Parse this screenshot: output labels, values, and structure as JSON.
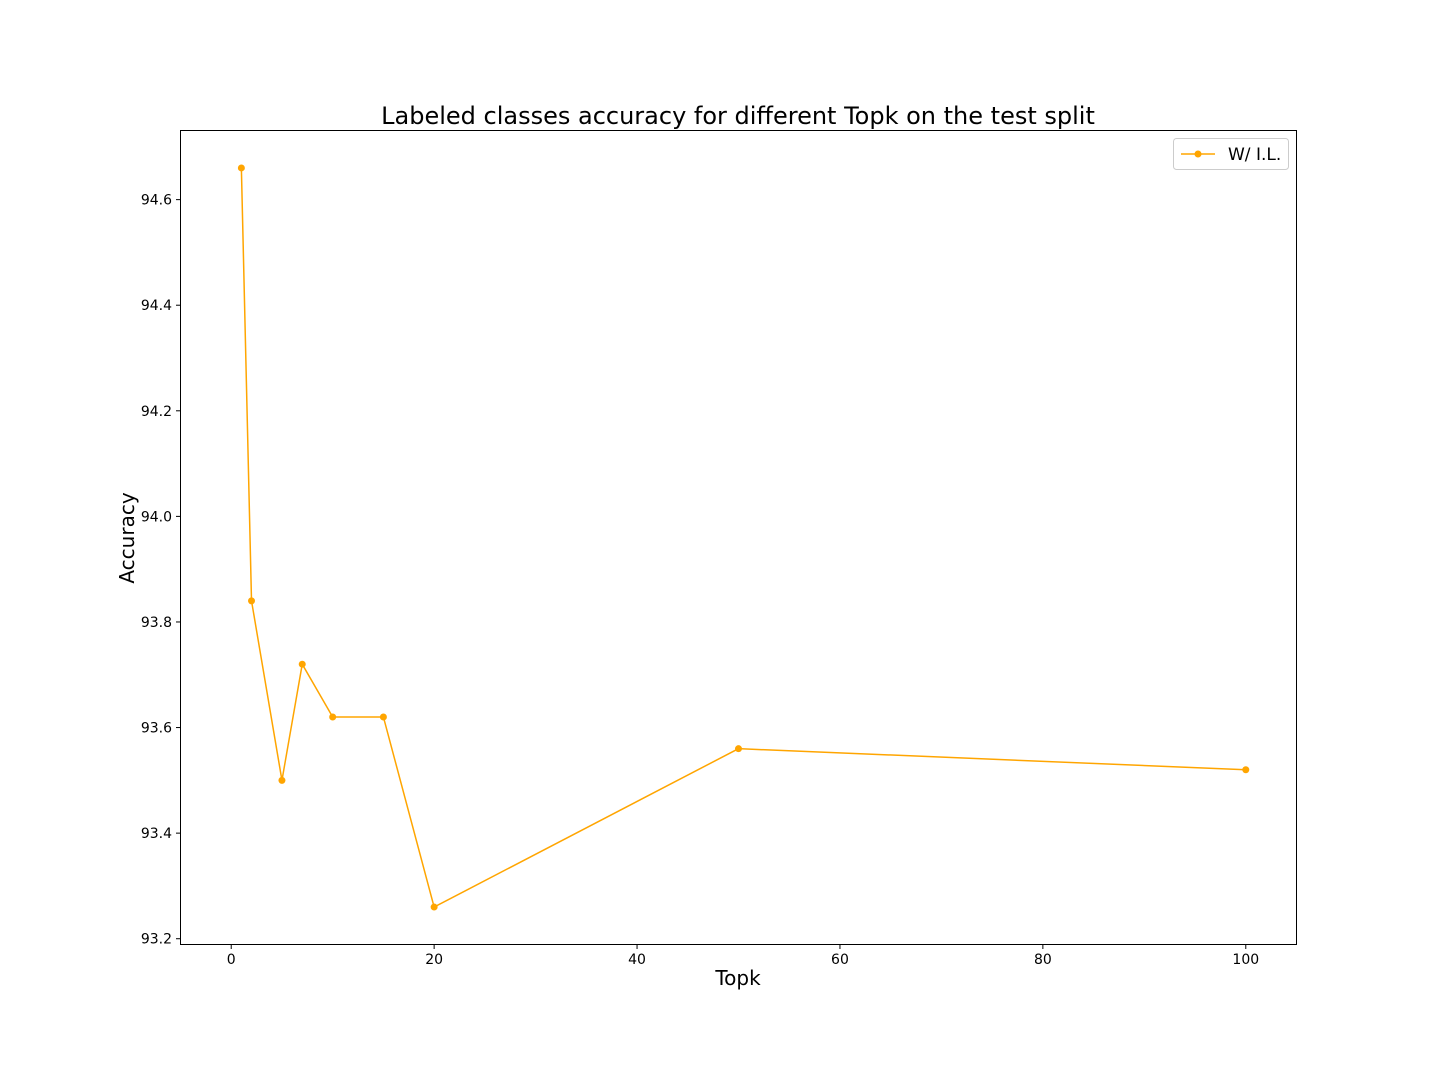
{
  "chart_data": {
    "type": "line",
    "title": "Labeled classes accuracy for different Topk on the test split",
    "xlabel": "Topk",
    "ylabel": "Accuracy",
    "xlim": [
      -4.95,
      104.95
    ],
    "ylim": [
      93.19,
      94.73
    ],
    "xticks": [
      0,
      20,
      40,
      60,
      80,
      100
    ],
    "yticks": [
      93.2,
      93.4,
      93.6,
      93.8,
      94.0,
      94.2,
      94.4,
      94.6
    ],
    "xtick_labels": [
      "0",
      "20",
      "40",
      "60",
      "80",
      "100"
    ],
    "ytick_labels": [
      "93.2",
      "93.4",
      "93.6",
      "93.8",
      "94.0",
      "94.2",
      "94.4",
      "94.6"
    ],
    "grid": false,
    "legend_position": "upper right",
    "series": [
      {
        "name": "W/ I.L.",
        "color": "#FFA500",
        "marker": "circle",
        "x": [
          1,
          2,
          5,
          7,
          10,
          15,
          20,
          50,
          100
        ],
        "y": [
          94.66,
          93.84,
          93.5,
          93.72,
          93.62,
          93.62,
          93.26,
          93.56,
          93.52
        ]
      }
    ]
  }
}
